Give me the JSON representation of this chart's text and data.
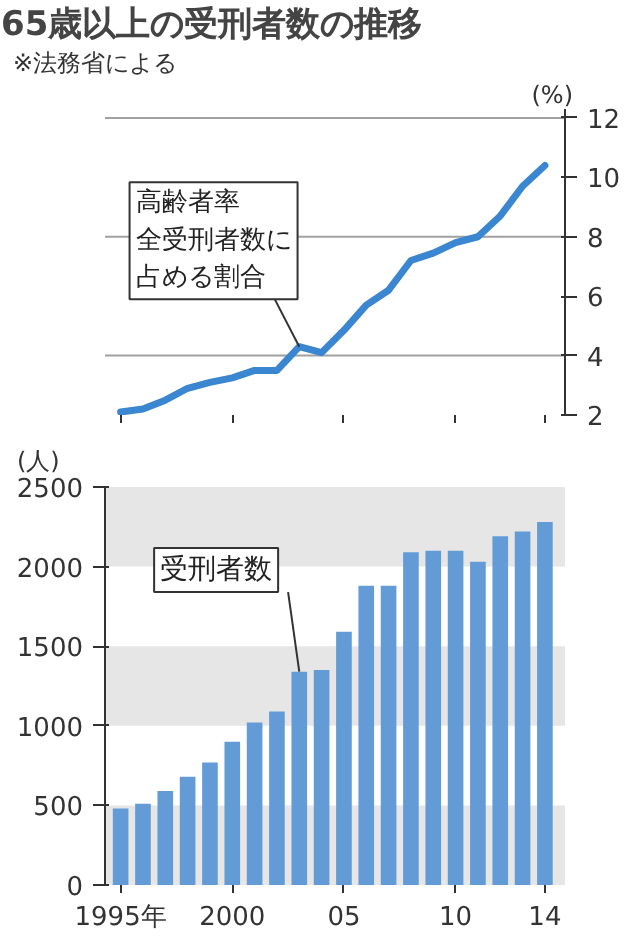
{
  "chart_data": [
    {
      "type": "line",
      "title": "65歳以上の受刑者数の推移",
      "ylabel": "(%)",
      "annotations": [
        "※法務省による",
        {
          "text": "全受刑者数に占める割合",
          "x": 2003,
          "y": 4.3
        }
      ],
      "x": [
        1995,
        1996,
        1997,
        1998,
        1999,
        2000,
        2001,
        2002,
        2003,
        2004,
        2005,
        2006,
        2007,
        2008,
        2009,
        2010,
        2011,
        2012,
        2013,
        2014
      ],
      "series": [
        {
          "name": "高齢者率",
          "color": "#3a86d0",
          "values": [
            2.1,
            2.2,
            2.5,
            2.9,
            3.1,
            3.25,
            3.5,
            3.5,
            4.3,
            4.1,
            4.85,
            5.7,
            6.2,
            7.2,
            7.45,
            7.8,
            8.0,
            8.7,
            9.7,
            10.4
          ]
        }
      ],
      "xlim": [
        1994.3,
        2014.9
      ],
      "xticks": [
        {
          "value": 1995,
          "label": null
        },
        {
          "value": 2000,
          "label": null
        },
        {
          "value": 2005,
          "label": null
        },
        {
          "value": 2010,
          "label": null
        },
        {
          "value": 2014,
          "label": null
        }
      ],
      "ylim": [
        2,
        12.3
      ],
      "yticks": [
        2,
        4,
        6,
        8,
        10,
        12
      ],
      "ref_lines": [
        {
          "axis": "y",
          "value": 4,
          "color": "#a0a0a0"
        },
        {
          "axis": "y",
          "value": 8,
          "color": "#a0a0a0"
        },
        {
          "axis": "y",
          "value": 12,
          "color": "#a0a0a0"
        }
      ],
      "tick_labels": "y",
      "line_style": "solid",
      "marker": "none"
    },
    {
      "type": "bar",
      "ylabel": "(人)",
      "x": [
        1995,
        1996,
        1997,
        1998,
        1999,
        2000,
        2001,
        2002,
        2003,
        2004,
        2005,
        2006,
        2007,
        2008,
        2009,
        2010,
        2011,
        2012,
        2013,
        2014
      ],
      "series": [
        {
          "name": "受刑者数",
          "color": "#639bd6",
          "values": [
            480,
            510,
            590,
            680,
            770,
            900,
            1020,
            1090,
            1340,
            1350,
            1590,
            1880,
            1880,
            2090,
            2100,
            2100,
            2030,
            2190,
            2220,
            2280
          ]
        }
      ],
      "xlim": [
        1994.3,
        2014.9
      ],
      "xticks": [
        {
          "value": 1995,
          "label": "1995年"
        },
        {
          "value": 2000,
          "label": "2000"
        },
        {
          "value": 2005,
          "label": "05"
        },
        {
          "value": 2010,
          "label": "10"
        },
        {
          "value": 2014,
          "label": "14"
        }
      ],
      "ylim": [
        0,
        2500
      ],
      "yticks": [
        0,
        500,
        1000,
        1500,
        2000,
        2500
      ],
      "bands": [
        {
          "axis": "y",
          "from": 0,
          "to": 500,
          "color": "#e6e6e6"
        },
        {
          "axis": "y",
          "from": 1000,
          "to": 1500,
          "color": "#e6e6e6"
        },
        {
          "axis": "y",
          "from": 2000,
          "to": 2500,
          "color": "#e6e6e6"
        }
      ]
    }
  ]
}
